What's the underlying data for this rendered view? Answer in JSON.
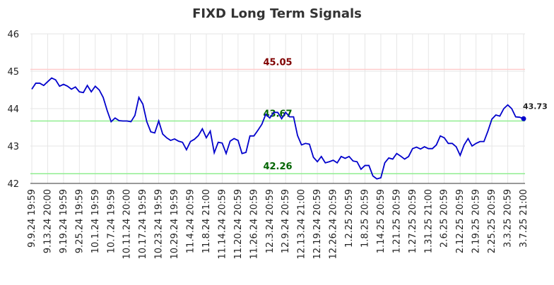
{
  "chart_data": {
    "type": "line",
    "title": "FIXD Long Term Signals",
    "categories": [
      "9.9.24 19:59",
      null,
      null,
      null,
      "9.13.24 20:00",
      null,
      null,
      null,
      "9.19.24 19:59",
      null,
      null,
      null,
      "9.25.24 19:59",
      null,
      null,
      null,
      "10.1.24 19:59",
      null,
      null,
      null,
      "10.7.24 19:59",
      null,
      null,
      null,
      "10.11.24 20:00",
      null,
      null,
      null,
      "10.17.24 19:59",
      null,
      null,
      null,
      "10.23.24 19:59",
      null,
      null,
      null,
      "10.29.24 19:59",
      null,
      null,
      null,
      "11.4.24 20:59",
      null,
      null,
      null,
      "11.8.24 21:00",
      null,
      null,
      null,
      "11.14.24 20:59",
      null,
      null,
      null,
      "11.20.24 20:59",
      null,
      null,
      null,
      "11.26.24 20:59",
      null,
      null,
      null,
      "12.3.24 20:59",
      null,
      null,
      null,
      "12.9.24 20:59",
      null,
      null,
      null,
      "12.13.24 21:00",
      null,
      null,
      null,
      "12.19.24 20:59",
      null,
      null,
      null,
      "12.26.24 20:59",
      null,
      null,
      null,
      "1.2.25 20:59",
      null,
      null,
      null,
      "1.8.25 20:59",
      null,
      null,
      null,
      "1.14.25 20:59",
      null,
      null,
      null,
      "1.21.25 20:59",
      null,
      null,
      null,
      "1.27.25 20:59",
      null,
      null,
      null,
      "1.31.25 21:00",
      null,
      null,
      null,
      "2.6.25 20:59",
      null,
      null,
      null,
      "2.12.25 20:59",
      null,
      null,
      null,
      "2.19.25 20:59",
      null,
      null,
      null,
      "2.25.25 20:59",
      null,
      null,
      null,
      "3.3.25 20:59",
      null,
      null,
      null,
      "3.7.25 21:00"
    ],
    "series": [
      {
        "color": "#0000cc",
        "values": [
          44.52,
          44.68,
          44.68,
          44.62,
          44.72,
          44.82,
          44.77,
          44.6,
          44.65,
          44.6,
          44.52,
          44.58,
          44.45,
          44.43,
          44.62,
          44.45,
          44.6,
          44.5,
          44.3,
          43.95,
          43.65,
          43.75,
          43.68,
          43.67,
          43.67,
          43.65,
          43.82,
          44.3,
          44.12,
          43.65,
          43.38,
          43.35,
          43.67,
          43.32,
          43.22,
          43.15,
          43.19,
          43.13,
          43.1,
          42.9,
          43.12,
          43.18,
          43.28,
          43.46,
          43.22,
          43.4,
          42.82,
          43.1,
          43.08,
          42.8,
          43.13,
          43.2,
          43.15,
          42.8,
          42.83,
          43.27,
          43.27,
          43.42,
          43.58,
          43.85,
          43.75,
          43.9,
          43.9,
          43.73,
          43.9,
          43.78,
          43.78,
          43.28,
          43.03,
          43.07,
          43.05,
          42.7,
          42.58,
          42.72,
          42.55,
          42.58,
          42.62,
          42.55,
          42.72,
          42.67,
          42.72,
          42.6,
          42.58,
          42.38,
          42.48,
          42.48,
          42.2,
          42.12,
          42.15,
          42.55,
          42.68,
          42.65,
          42.8,
          42.73,
          42.65,
          42.72,
          42.93,
          42.97,
          42.92,
          42.98,
          42.93,
          42.93,
          43.03,
          43.27,
          43.22,
          43.07,
          43.07,
          42.98,
          42.75,
          43.03,
          43.2,
          43.0,
          43.07,
          43.12,
          43.12,
          43.4,
          43.72,
          43.83,
          43.8,
          44.0,
          44.1,
          44.0,
          43.78,
          43.77,
          43.73
        ]
      }
    ],
    "hlines": [
      {
        "value": 45.05,
        "color": "#ffcccc",
        "label_color": "#800000"
      },
      {
        "value": 43.67,
        "color": "#90ee90",
        "label_color": "#006400"
      },
      {
        "value": 42.26,
        "color": "#90ee90",
        "label_color": "#006400"
      }
    ],
    "ylim": [
      42,
      46
    ],
    "yticks": [
      42,
      43,
      44,
      45,
      46
    ],
    "grid": true
  }
}
